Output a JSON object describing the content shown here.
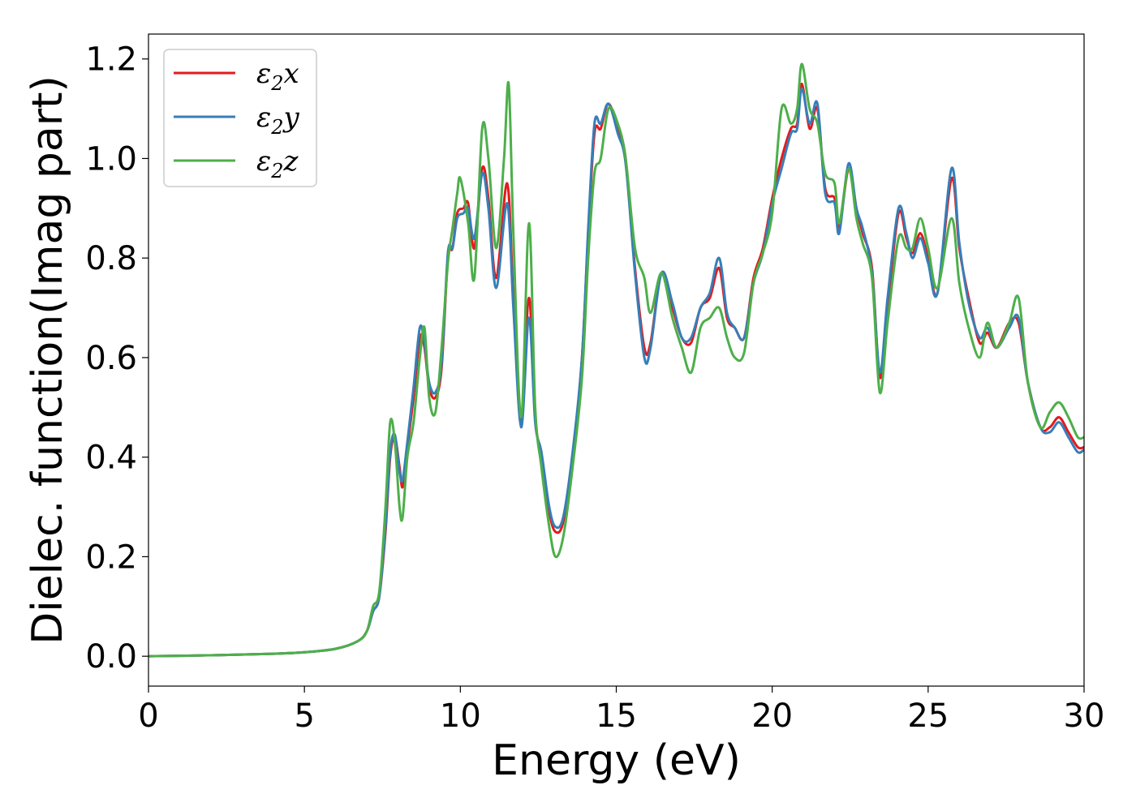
{
  "chart_data": {
    "type": "line",
    "xlabel": "Energy (eV)",
    "ylabel": "Dielec. function(Imag part)",
    "xlim": [
      0,
      30
    ],
    "ylim": [
      -0.06,
      1.25
    ],
    "xticks": [
      0,
      5,
      10,
      15,
      20,
      25,
      30
    ],
    "yticks": [
      0.0,
      0.2,
      0.4,
      0.6,
      0.8,
      1.0,
      1.2
    ],
    "xtick_labels": [
      "0",
      "5",
      "10",
      "15",
      "20",
      "25",
      "30"
    ],
    "ytick_labels": [
      "0.0",
      "0.2",
      "0.4",
      "0.6",
      "0.8",
      "1.0",
      "1.2"
    ],
    "grid": false,
    "legend_position": "top-left",
    "series": [
      {
        "name": "ε2x",
        "legend_main": "ε",
        "legend_sub": "2",
        "legend_var": "x",
        "color": "#e41a1c",
        "points": [
          [
            0,
            0.0
          ],
          [
            2,
            0.002
          ],
          [
            4,
            0.005
          ],
          [
            5,
            0.008
          ],
          [
            6,
            0.015
          ],
          [
            6.7,
            0.03
          ],
          [
            7.0,
            0.05
          ],
          [
            7.2,
            0.09
          ],
          [
            7.4,
            0.12
          ],
          [
            7.6,
            0.25
          ],
          [
            7.75,
            0.4
          ],
          [
            7.9,
            0.44
          ],
          [
            8.05,
            0.38
          ],
          [
            8.15,
            0.34
          ],
          [
            8.3,
            0.42
          ],
          [
            8.5,
            0.52
          ],
          [
            8.7,
            0.64
          ],
          [
            8.85,
            0.62
          ],
          [
            9.0,
            0.54
          ],
          [
            9.2,
            0.52
          ],
          [
            9.4,
            0.58
          ],
          [
            9.6,
            0.8
          ],
          [
            9.75,
            0.82
          ],
          [
            9.9,
            0.89
          ],
          [
            10.1,
            0.9
          ],
          [
            10.25,
            0.91
          ],
          [
            10.45,
            0.82
          ],
          [
            10.7,
            0.98
          ],
          [
            10.9,
            0.92
          ],
          [
            11.15,
            0.76
          ],
          [
            11.5,
            0.95
          ],
          [
            11.7,
            0.72
          ],
          [
            11.95,
            0.47
          ],
          [
            12.2,
            0.72
          ],
          [
            12.4,
            0.48
          ],
          [
            12.6,
            0.4
          ],
          [
            12.85,
            0.29
          ],
          [
            13.05,
            0.25
          ],
          [
            13.3,
            0.27
          ],
          [
            13.6,
            0.4
          ],
          [
            13.9,
            0.6
          ],
          [
            14.1,
            0.85
          ],
          [
            14.3,
            1.05
          ],
          [
            14.5,
            1.06
          ],
          [
            14.75,
            1.11
          ],
          [
            15.05,
            1.06
          ],
          [
            15.3,
            1.0
          ],
          [
            15.6,
            0.78
          ],
          [
            15.9,
            0.62
          ],
          [
            16.1,
            0.63
          ],
          [
            16.45,
            0.77
          ],
          [
            16.8,
            0.7
          ],
          [
            17.1,
            0.64
          ],
          [
            17.4,
            0.63
          ],
          [
            17.7,
            0.7
          ],
          [
            18.0,
            0.72
          ],
          [
            18.3,
            0.78
          ],
          [
            18.55,
            0.68
          ],
          [
            18.8,
            0.66
          ],
          [
            19.1,
            0.64
          ],
          [
            19.4,
            0.76
          ],
          [
            19.7,
            0.82
          ],
          [
            20.0,
            0.92
          ],
          [
            20.3,
            1.0
          ],
          [
            20.6,
            1.06
          ],
          [
            20.8,
            1.07
          ],
          [
            20.95,
            1.15
          ],
          [
            21.2,
            1.06
          ],
          [
            21.45,
            1.1
          ],
          [
            21.7,
            0.94
          ],
          [
            22.0,
            0.92
          ],
          [
            22.15,
            0.86
          ],
          [
            22.45,
            0.98
          ],
          [
            22.7,
            0.9
          ],
          [
            22.9,
            0.85
          ],
          [
            23.2,
            0.78
          ],
          [
            23.45,
            0.56
          ],
          [
            23.7,
            0.7
          ],
          [
            24.05,
            0.89
          ],
          [
            24.3,
            0.84
          ],
          [
            24.5,
            0.81
          ],
          [
            24.75,
            0.85
          ],
          [
            25.0,
            0.8
          ],
          [
            25.3,
            0.73
          ],
          [
            25.75,
            0.96
          ],
          [
            26.0,
            0.82
          ],
          [
            26.3,
            0.72
          ],
          [
            26.65,
            0.63
          ],
          [
            26.9,
            0.65
          ],
          [
            27.2,
            0.62
          ],
          [
            27.6,
            0.67
          ],
          [
            27.9,
            0.67
          ],
          [
            28.2,
            0.55
          ],
          [
            28.6,
            0.46
          ],
          [
            28.9,
            0.46
          ],
          [
            29.2,
            0.48
          ],
          [
            29.5,
            0.45
          ],
          [
            29.8,
            0.42
          ],
          [
            30.0,
            0.42
          ]
        ]
      },
      {
        "name": "ε2y",
        "legend_main": "ε",
        "legend_sub": "2",
        "legend_var": "y",
        "color": "#377eb8",
        "points": [
          [
            0,
            0.0
          ],
          [
            2,
            0.002
          ],
          [
            4,
            0.005
          ],
          [
            5,
            0.008
          ],
          [
            6,
            0.015
          ],
          [
            6.7,
            0.03
          ],
          [
            7.0,
            0.05
          ],
          [
            7.2,
            0.09
          ],
          [
            7.4,
            0.12
          ],
          [
            7.6,
            0.26
          ],
          [
            7.75,
            0.41
          ],
          [
            7.9,
            0.445
          ],
          [
            8.05,
            0.37
          ],
          [
            8.15,
            0.355
          ],
          [
            8.3,
            0.43
          ],
          [
            8.5,
            0.54
          ],
          [
            8.7,
            0.66
          ],
          [
            8.85,
            0.63
          ],
          [
            9.0,
            0.55
          ],
          [
            9.2,
            0.53
          ],
          [
            9.4,
            0.59
          ],
          [
            9.6,
            0.81
          ],
          [
            9.75,
            0.82
          ],
          [
            9.9,
            0.88
          ],
          [
            10.1,
            0.89
          ],
          [
            10.25,
            0.9
          ],
          [
            10.45,
            0.84
          ],
          [
            10.7,
            0.97
          ],
          [
            10.9,
            0.9
          ],
          [
            11.15,
            0.74
          ],
          [
            11.5,
            0.91
          ],
          [
            11.7,
            0.7
          ],
          [
            11.95,
            0.46
          ],
          [
            12.2,
            0.68
          ],
          [
            12.4,
            0.47
          ],
          [
            12.6,
            0.41
          ],
          [
            12.85,
            0.3
          ],
          [
            13.05,
            0.26
          ],
          [
            13.3,
            0.28
          ],
          [
            13.6,
            0.41
          ],
          [
            13.9,
            0.6
          ],
          [
            14.1,
            0.86
          ],
          [
            14.3,
            1.07
          ],
          [
            14.5,
            1.07
          ],
          [
            14.75,
            1.11
          ],
          [
            15.05,
            1.05
          ],
          [
            15.3,
            0.99
          ],
          [
            15.6,
            0.77
          ],
          [
            15.9,
            0.6
          ],
          [
            16.1,
            0.62
          ],
          [
            16.45,
            0.77
          ],
          [
            16.8,
            0.71
          ],
          [
            17.1,
            0.64
          ],
          [
            17.4,
            0.64
          ],
          [
            17.7,
            0.7
          ],
          [
            18.0,
            0.73
          ],
          [
            18.3,
            0.8
          ],
          [
            18.55,
            0.69
          ],
          [
            18.8,
            0.66
          ],
          [
            19.1,
            0.64
          ],
          [
            19.4,
            0.75
          ],
          [
            19.7,
            0.81
          ],
          [
            20.0,
            0.91
          ],
          [
            20.3,
            0.98
          ],
          [
            20.6,
            1.05
          ],
          [
            20.8,
            1.06
          ],
          [
            20.95,
            1.14
          ],
          [
            21.2,
            1.07
          ],
          [
            21.45,
            1.11
          ],
          [
            21.7,
            0.93
          ],
          [
            22.0,
            0.91
          ],
          [
            22.15,
            0.85
          ],
          [
            22.45,
            0.99
          ],
          [
            22.7,
            0.9
          ],
          [
            22.9,
            0.86
          ],
          [
            23.2,
            0.77
          ],
          [
            23.45,
            0.57
          ],
          [
            23.7,
            0.72
          ],
          [
            24.05,
            0.9
          ],
          [
            24.3,
            0.85
          ],
          [
            24.5,
            0.8
          ],
          [
            24.75,
            0.84
          ],
          [
            25.0,
            0.79
          ],
          [
            25.3,
            0.73
          ],
          [
            25.75,
            0.98
          ],
          [
            26.0,
            0.83
          ],
          [
            26.3,
            0.71
          ],
          [
            26.65,
            0.64
          ],
          [
            26.9,
            0.66
          ],
          [
            27.2,
            0.62
          ],
          [
            27.6,
            0.66
          ],
          [
            27.9,
            0.68
          ],
          [
            28.2,
            0.55
          ],
          [
            28.6,
            0.46
          ],
          [
            28.9,
            0.45
          ],
          [
            29.2,
            0.47
          ],
          [
            29.5,
            0.44
          ],
          [
            29.8,
            0.41
          ],
          [
            30.0,
            0.415
          ]
        ]
      },
      {
        "name": "ε2z",
        "legend_main": "ε",
        "legend_sub": "2",
        "legend_var": "z",
        "color": "#4daf4a",
        "points": [
          [
            0,
            0.0
          ],
          [
            2,
            0.002
          ],
          [
            4,
            0.005
          ],
          [
            5,
            0.008
          ],
          [
            6,
            0.015
          ],
          [
            6.7,
            0.03
          ],
          [
            7.0,
            0.05
          ],
          [
            7.2,
            0.1
          ],
          [
            7.4,
            0.13
          ],
          [
            7.6,
            0.3
          ],
          [
            7.75,
            0.47
          ],
          [
            7.9,
            0.43
          ],
          [
            8.05,
            0.3
          ],
          [
            8.15,
            0.28
          ],
          [
            8.3,
            0.4
          ],
          [
            8.5,
            0.47
          ],
          [
            8.7,
            0.6
          ],
          [
            8.85,
            0.66
          ],
          [
            9.0,
            0.52
          ],
          [
            9.2,
            0.49
          ],
          [
            9.4,
            0.62
          ],
          [
            9.6,
            0.79
          ],
          [
            9.75,
            0.86
          ],
          [
            9.9,
            0.93
          ],
          [
            10.0,
            0.96
          ],
          [
            10.25,
            0.87
          ],
          [
            10.45,
            0.76
          ],
          [
            10.7,
            1.06
          ],
          [
            10.9,
            1.0
          ],
          [
            11.15,
            0.82
          ],
          [
            11.4,
            1.0
          ],
          [
            11.55,
            1.15
          ],
          [
            11.7,
            0.85
          ],
          [
            11.95,
            0.48
          ],
          [
            12.2,
            0.87
          ],
          [
            12.4,
            0.5
          ],
          [
            12.6,
            0.38
          ],
          [
            12.85,
            0.26
          ],
          [
            13.05,
            0.2
          ],
          [
            13.3,
            0.24
          ],
          [
            13.6,
            0.38
          ],
          [
            13.9,
            0.56
          ],
          [
            14.1,
            0.8
          ],
          [
            14.3,
            0.97
          ],
          [
            14.5,
            1.0
          ],
          [
            14.75,
            1.1
          ],
          [
            15.05,
            1.07
          ],
          [
            15.3,
            1.0
          ],
          [
            15.6,
            0.82
          ],
          [
            15.9,
            0.76
          ],
          [
            16.1,
            0.69
          ],
          [
            16.45,
            0.77
          ],
          [
            16.8,
            0.68
          ],
          [
            17.1,
            0.62
          ],
          [
            17.4,
            0.57
          ],
          [
            17.7,
            0.66
          ],
          [
            18.0,
            0.68
          ],
          [
            18.3,
            0.7
          ],
          [
            18.55,
            0.64
          ],
          [
            18.8,
            0.6
          ],
          [
            19.1,
            0.61
          ],
          [
            19.4,
            0.75
          ],
          [
            19.7,
            0.81
          ],
          [
            20.0,
            0.89
          ],
          [
            20.3,
            1.1
          ],
          [
            20.6,
            1.07
          ],
          [
            20.8,
            1.1
          ],
          [
            20.95,
            1.19
          ],
          [
            21.2,
            1.1
          ],
          [
            21.45,
            1.07
          ],
          [
            21.7,
            0.97
          ],
          [
            22.0,
            0.95
          ],
          [
            22.15,
            0.87
          ],
          [
            22.45,
            0.98
          ],
          [
            22.7,
            0.88
          ],
          [
            22.9,
            0.83
          ],
          [
            23.2,
            0.76
          ],
          [
            23.45,
            0.53
          ],
          [
            23.7,
            0.67
          ],
          [
            24.05,
            0.84
          ],
          [
            24.3,
            0.82
          ],
          [
            24.5,
            0.82
          ],
          [
            24.75,
            0.88
          ],
          [
            25.0,
            0.82
          ],
          [
            25.3,
            0.74
          ],
          [
            25.75,
            0.88
          ],
          [
            26.0,
            0.75
          ],
          [
            26.3,
            0.66
          ],
          [
            26.65,
            0.6
          ],
          [
            26.9,
            0.67
          ],
          [
            27.2,
            0.62
          ],
          [
            27.6,
            0.67
          ],
          [
            27.9,
            0.72
          ],
          [
            28.2,
            0.55
          ],
          [
            28.6,
            0.46
          ],
          [
            28.9,
            0.49
          ],
          [
            29.2,
            0.51
          ],
          [
            29.5,
            0.48
          ],
          [
            29.8,
            0.44
          ],
          [
            30.0,
            0.44
          ]
        ]
      }
    ]
  }
}
